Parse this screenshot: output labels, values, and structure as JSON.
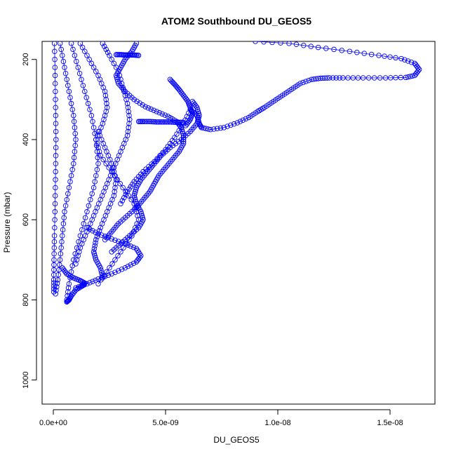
{
  "chart_data": {
    "type": "scatter",
    "title": "ATOM2 Southbound DU_GEOS5",
    "xlabel": "DU_GEOS5",
    "ylabel": "Pressure (mbar)",
    "xlim": [
      -5e-10,
      1.7e-08
    ],
    "ylim": [
      1060,
      155
    ],
    "y_reversed": true,
    "x_ticks": [
      0,
      5e-09,
      1e-08,
      1.5e-08
    ],
    "x_tick_labels": [
      "0.0e+00",
      "5.0e-09",
      "1.0e-08",
      "1.5e-08"
    ],
    "y_ticks": [
      200,
      400,
      600,
      800,
      1000
    ],
    "y_tick_labels": [
      "200",
      "400",
      "600",
      "800",
      "1000"
    ],
    "marker": "open-circle",
    "color": "#0000ff",
    "grid": false,
    "series": [
      {
        "x": [
          9e-09,
          1.05e-08,
          1.18e-08,
          1.32e-08,
          1.45e-08,
          1.55e-08,
          1.61e-08,
          1.63e-08,
          1.61e-08,
          1.57e-08,
          1.48e-08,
          1.38e-08,
          1.29e-08,
          1.23e-08,
          1.19e-08,
          1.15e-08,
          1.1e-08,
          1.06e-08,
          1.02e-08,
          9.8e-09,
          9.4e-09,
          9.1e-09,
          8.7e-09,
          8.2e-09,
          7.6e-09,
          7e-09,
          6.6e-09,
          6.5e-09,
          6.4e-09,
          6.1e-09,
          5.8e-09,
          5.4e-09,
          5e-09,
          4.5e-09,
          4e-09,
          3.6e-09,
          3.3e-09,
          3e-09
        ],
        "y": [
          155,
          160,
          170,
          180,
          190,
          198,
          210,
          225,
          240,
          245,
          246,
          246,
          246,
          246,
          247,
          250,
          260,
          275,
          290,
          305,
          320,
          330,
          345,
          358,
          370,
          375,
          370,
          360,
          340,
          325,
          360,
          395,
          425,
          455,
          480,
          505,
          530,
          560
        ]
      },
      {
        "x": [
          3.7e-09,
          3.5e-09,
          3.2e-09,
          3e-09,
          2.8e-09,
          2.9e-09,
          3.2e-09,
          3.6e-09,
          4.1e-09,
          4.6e-09,
          5.1e-09,
          5.5e-09,
          5.7e-09,
          5.8e-09,
          5.8e-09,
          5.6e-09,
          5.3e-09,
          5e-09,
          4.7e-09,
          4.5e-09,
          4.3e-09,
          4e-09,
          3.7e-09,
          3.3e-09,
          2.9e-09,
          2.6e-09,
          2.3e-09
        ],
        "y": [
          160,
          180,
          200,
          220,
          240,
          260,
          280,
          300,
          318,
          330,
          342,
          355,
          370,
          390,
          410,
          430,
          450,
          470,
          490,
          510,
          530,
          550,
          570,
          590,
          610,
          630,
          650
        ]
      },
      {
        "x": [
          6.2e-09,
          6.4e-09,
          6.5e-09,
          6.4e-09,
          6.1e-09,
          5.7e-09,
          5.2e-09,
          4.8e-09,
          4.5e-09,
          4.2e-09,
          3.9e-09,
          3.7e-09,
          3.6e-09,
          3.7e-09,
          3.9e-09,
          4e-09,
          3.8e-09,
          3.4e-09,
          3e-09,
          2.6e-09
        ],
        "y": [
          305,
          320,
          340,
          360,
          380,
          400,
          420,
          440,
          460,
          480,
          500,
          520,
          540,
          560,
          580,
          600,
          620,
          640,
          660,
          680
        ]
      },
      {
        "x": [
          5.2e-09,
          5.4e-09,
          5.6e-09,
          5.8e-09,
          6e-09,
          6.1e-09,
          6.2e-09,
          6.1e-09,
          5.9e-09
        ],
        "y": [
          250,
          262,
          275,
          290,
          305,
          320,
          335,
          350,
          365
        ]
      },
      {
        "x": [
          3.8e-09,
          4e-09,
          4.3e-09,
          4.6e-09,
          4.9e-09,
          5.2e-09,
          5.5e-09,
          5.8e-09
        ],
        "y": [
          355,
          355,
          355,
          356,
          356,
          356,
          357,
          357
        ]
      },
      {
        "x": [
          2.8e-09,
          3e-09,
          3.2e-09,
          3.4e-09,
          3.6e-09,
          3.8e-09
        ],
        "y": [
          188,
          188,
          189,
          189,
          189,
          190
        ]
      },
      {
        "x": [
          2.2e-09,
          2.5e-09,
          2.9e-09,
          3.1e-09,
          3.3e-09,
          3.4e-09,
          3.3e-09,
          3e-09,
          2.7e-09,
          2.4e-09,
          2.1e-09,
          1.8e-09,
          1.5e-09,
          1.2e-09,
          1e-09
        ],
        "y": [
          160,
          190,
          230,
          270,
          310,
          350,
          390,
          430,
          470,
          510,
          550,
          590,
          630,
          670,
          710
        ]
      },
      {
        "x": [
          1.2e-09,
          1.6e-09,
          2e-09,
          2.3e-09,
          2.4e-09,
          2.2e-09,
          1.9e-09,
          2.1e-09,
          2.6e-09,
          3.1e-09,
          3.6e-09,
          3.8e-09,
          3.5e-09,
          3e-09,
          2.5e-09,
          2e-09
        ],
        "y": [
          160,
          200,
          240,
          280,
          320,
          360,
          400,
          440,
          480,
          520,
          560,
          600,
          640,
          680,
          720,
          760
        ]
      },
      {
        "x": [
          1.5e-09,
          2e-09,
          2.6e-09,
          3.2e-09,
          3.7e-09,
          3.9e-09,
          3.7e-09,
          3.2e-09,
          2.6e-09,
          2e-09,
          1.5e-09,
          1e-09
        ],
        "y": [
          620,
          635,
          648,
          660,
          672,
          690,
          705,
          720,
          735,
          748,
          760,
          770
        ]
      },
      {
        "x": [
          8e-10,
          1.1e-09,
          1.4e-09,
          1.7e-09,
          1.9e-09,
          2e-09,
          1.8e-09,
          1.5e-09,
          1.2e-09,
          9e-10,
          7e-10,
          6e-10
        ],
        "y": [
          160,
          220,
          280,
          340,
          400,
          460,
          520,
          580,
          640,
          700,
          760,
          800
        ]
      },
      {
        "x": [
          3e-10,
          5e-10,
          7e-10,
          9e-10,
          1e-09,
          9e-10,
          7e-10,
          5e-10,
          4e-10,
          3e-10,
          2e-10,
          1e-10
        ],
        "y": [
          160,
          220,
          280,
          340,
          400,
          460,
          520,
          580,
          640,
          700,
          750,
          785
        ]
      },
      {
        "x": [
          5e-11,
          8e-11,
          1e-10,
          1.2e-10,
          1e-10,
          8e-11,
          5e-11,
          3e-11,
          2e-11,
          2e-11
        ],
        "y": [
          160,
          240,
          320,
          400,
          480,
          560,
          640,
          700,
          750,
          780
        ]
      },
      {
        "x": [
          4e-10,
          6e-10,
          9e-10,
          1.2e-09,
          1.4e-09,
          1.3e-09,
          1e-09,
          8e-10,
          7e-10,
          6e-10
        ],
        "y": [
          720,
          735,
          745,
          752,
          758,
          765,
          775,
          790,
          800,
          805
        ]
      },
      {
        "x": [
          2e-09,
          2.3e-09,
          2.6e-09,
          2.8e-09,
          2.7e-09,
          2.4e-09,
          2.1e-09,
          1.9e-09,
          1.8e-09,
          1.9e-09,
          2.1e-09,
          2.2e-09
        ],
        "y": [
          380,
          420,
          460,
          500,
          540,
          580,
          620,
          650,
          680,
          700,
          720,
          745
        ]
      }
    ]
  }
}
